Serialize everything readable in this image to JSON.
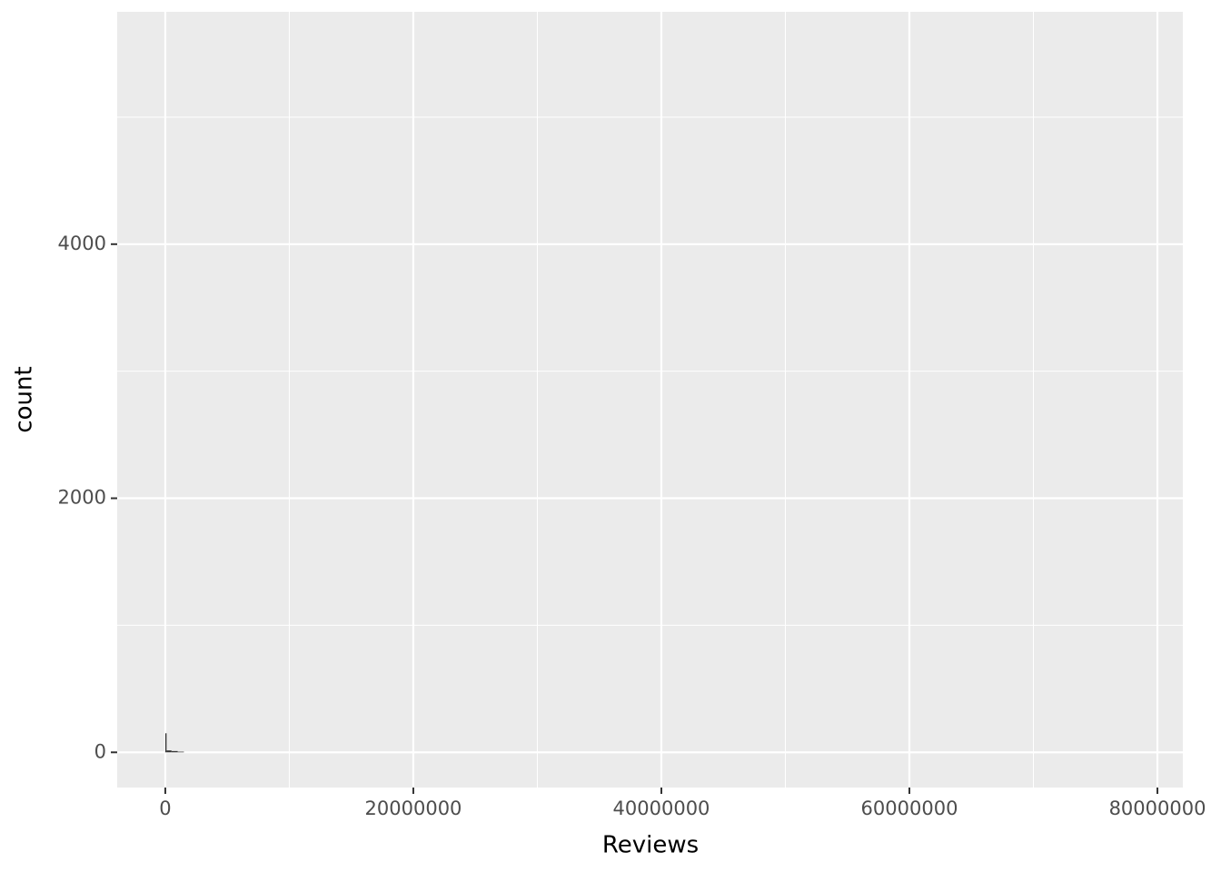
{
  "chart_data": {
    "type": "histogram",
    "x_label": "Reviews",
    "y_label": "count",
    "bins": [
      0,
      100000,
      500000,
      1000000,
      1500000
    ],
    "values": [
      150,
      15,
      10,
      5
    ],
    "color": "#333333",
    "xlim": [
      -3880000,
      82050000
    ],
    "ylim": [
      -277,
      5829
    ],
    "xticks": [
      0,
      20000000,
      40000000,
      60000000,
      80000000
    ],
    "xminor": [
      10000000,
      30000000,
      50000000,
      70000000
    ],
    "yticks": [
      0,
      2000,
      4000
    ],
    "yminor": [
      1000,
      3000,
      5000
    ],
    "grid": true
  }
}
